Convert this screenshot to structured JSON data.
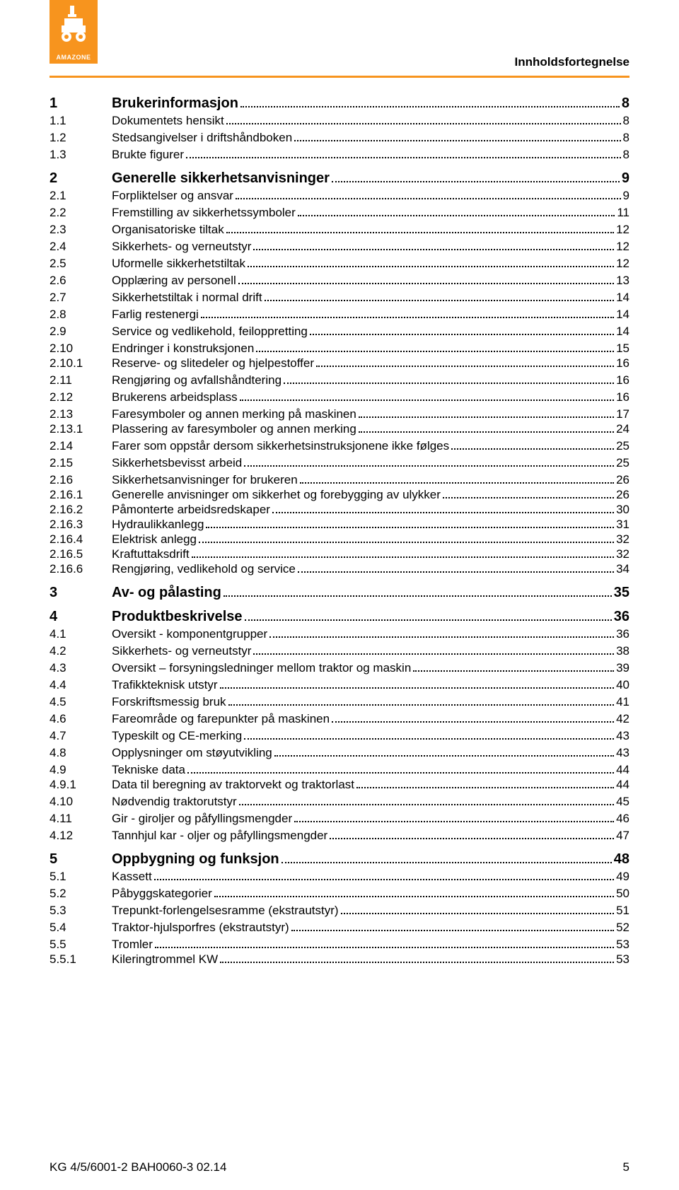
{
  "brand": {
    "name": "AMAZONE",
    "logo_bg": "#f7941e",
    "logo_fg": "#ffffff"
  },
  "header": {
    "section_title": "Innholdsfortegnelse"
  },
  "colors": {
    "rule": "#f7941e",
    "text": "#000000",
    "background": "#ffffff",
    "dot_leader": "#000000"
  },
  "typography": {
    "body_fontsize_pt": 12,
    "chapter_fontsize_pt": 14,
    "font_family": "Arial"
  },
  "toc": [
    {
      "level": "chapter",
      "num": "1",
      "title": "Brukerinformasjon",
      "page": "8"
    },
    {
      "level": "section",
      "num": "1.1",
      "title": "Dokumentets hensikt",
      "page": "8"
    },
    {
      "level": "section",
      "num": "1.2",
      "title": "Stedsangivelser i driftshåndboken",
      "page": "8"
    },
    {
      "level": "section",
      "num": "1.3",
      "title": "Brukte figurer",
      "page": "8"
    },
    {
      "level": "chapter",
      "num": "2",
      "title": "Generelle sikkerhetsanvisninger",
      "page": "9"
    },
    {
      "level": "section",
      "num": "2.1",
      "title": "Forpliktelser og ansvar",
      "page": "9"
    },
    {
      "level": "section",
      "num": "2.2",
      "title": "Fremstilling av sikkerhetssymboler",
      "page": "11"
    },
    {
      "level": "section",
      "num": "2.3",
      "title": "Organisatoriske tiltak",
      "page": "12"
    },
    {
      "level": "section",
      "num": "2.4",
      "title": "Sikkerhets- og verneutstyr",
      "page": "12"
    },
    {
      "level": "section",
      "num": "2.5",
      "title": "Uformelle sikkerhetstiltak",
      "page": "12"
    },
    {
      "level": "section",
      "num": "2.6",
      "title": "Opplæring av personell",
      "page": "13"
    },
    {
      "level": "section",
      "num": "2.7",
      "title": "Sikkerhetstiltak i normal drift",
      "page": "14"
    },
    {
      "level": "section",
      "num": "2.8",
      "title": "Farlig restenergi",
      "page": "14"
    },
    {
      "level": "section",
      "num": "2.9",
      "title": "Service og vedlikehold, feiloppretting",
      "page": "14"
    },
    {
      "level": "section",
      "num": "2.10",
      "title": "Endringer i konstruksjonen",
      "page": "15"
    },
    {
      "level": "subsection",
      "num": "2.10.1",
      "title": "Reserve- og slitedeler og hjelpestoffer",
      "page": "16"
    },
    {
      "level": "section",
      "num": "2.11",
      "title": "Rengjøring og avfallshåndtering",
      "page": "16"
    },
    {
      "level": "section",
      "num": "2.12",
      "title": "Brukerens arbeidsplass",
      "page": "16"
    },
    {
      "level": "section",
      "num": "2.13",
      "title": "Faresymboler og annen merking på maskinen",
      "page": "17"
    },
    {
      "level": "subsection",
      "num": "2.13.1",
      "title": "Plassering av faresymboler og annen merking",
      "page": "24"
    },
    {
      "level": "section",
      "num": "2.14",
      "title": "Farer som oppstår dersom sikkerhetsinstruksjonene ikke følges",
      "page": "25"
    },
    {
      "level": "section",
      "num": "2.15",
      "title": "Sikkerhetsbevisst arbeid",
      "page": "25"
    },
    {
      "level": "section",
      "num": "2.16",
      "title": "Sikkerhetsanvisninger for brukeren",
      "page": "26"
    },
    {
      "level": "subsection",
      "num": "2.16.1",
      "title": "Generelle anvisninger om sikkerhet og forebygging av ulykker",
      "page": "26"
    },
    {
      "level": "subsection",
      "num": "2.16.2",
      "title": "Påmonterte arbeidsredskaper",
      "page": "30"
    },
    {
      "level": "subsection",
      "num": "2.16.3",
      "title": "Hydraulikkanlegg",
      "page": "31"
    },
    {
      "level": "subsection",
      "num": "2.16.4",
      "title": "Elektrisk anlegg",
      "page": "32"
    },
    {
      "level": "subsection",
      "num": "2.16.5",
      "title": "Kraftuttaksdrift",
      "page": "32"
    },
    {
      "level": "subsection",
      "num": "2.16.6",
      "title": "Rengjøring, vedlikehold og service",
      "page": "34"
    },
    {
      "level": "chapter",
      "num": "3",
      "title": "Av- og pålasting",
      "page": "35"
    },
    {
      "level": "chapter",
      "num": "4",
      "title": "Produktbeskrivelse",
      "page": "36"
    },
    {
      "level": "section",
      "num": "4.1",
      "title": "Oversikt - komponentgrupper",
      "page": "36"
    },
    {
      "level": "section",
      "num": "4.2",
      "title": "Sikkerhets- og verneutstyr",
      "page": "38"
    },
    {
      "level": "section",
      "num": "4.3",
      "title": "Oversikt – forsyningsledninger mellom traktor og maskin",
      "page": "39"
    },
    {
      "level": "section",
      "num": "4.4",
      "title": "Trafikkteknisk utstyr",
      "page": "40"
    },
    {
      "level": "section",
      "num": "4.5",
      "title": "Forskriftsmessig bruk",
      "page": "41"
    },
    {
      "level": "section",
      "num": "4.6",
      "title": "Fareområde og farepunkter på maskinen",
      "page": "42"
    },
    {
      "level": "section",
      "num": "4.7",
      "title": "Typeskilt og CE-merking",
      "page": "43"
    },
    {
      "level": "section",
      "num": "4.8",
      "title": "Opplysninger om støyutvikling",
      "page": "43"
    },
    {
      "level": "section",
      "num": "4.9",
      "title": "Tekniske data",
      "page": "44"
    },
    {
      "level": "subsection",
      "num": "4.9.1",
      "title": "Data til beregning av traktorvekt og traktorlast",
      "page": "44"
    },
    {
      "level": "section",
      "num": "4.10",
      "title": "Nødvendig traktorutstyr",
      "page": "45"
    },
    {
      "level": "section",
      "num": "4.11",
      "title": "Gir - giroljer og påfyllingsmengder",
      "page": "46"
    },
    {
      "level": "section",
      "num": "4.12",
      "title": "Tannhjul kar - oljer og påfyllingsmengder",
      "page": "47"
    },
    {
      "level": "chapter",
      "num": "5",
      "title": "Oppbygning og funksjon",
      "page": "48"
    },
    {
      "level": "section",
      "num": "5.1",
      "title": "Kassett",
      "page": "49"
    },
    {
      "level": "section",
      "num": "5.2",
      "title": "Påbyggskategorier",
      "page": "50"
    },
    {
      "level": "section",
      "num": "5.3",
      "title": "Trepunkt-forlengelsesramme (ekstrautstyr)",
      "page": "51"
    },
    {
      "level": "section",
      "num": "5.4",
      "title": "Traktor-hjulsporfres (ekstrautstyr)",
      "page": "52"
    },
    {
      "level": "section",
      "num": "5.5",
      "title": "Tromler",
      "page": "53"
    },
    {
      "level": "subsection",
      "num": "5.5.1",
      "title": "Kileringtrommel KW",
      "page": "53"
    }
  ],
  "footer": {
    "doc_code": "KG 4/5/6001-2  BAH0060-3  02.14",
    "page_number": "5"
  }
}
